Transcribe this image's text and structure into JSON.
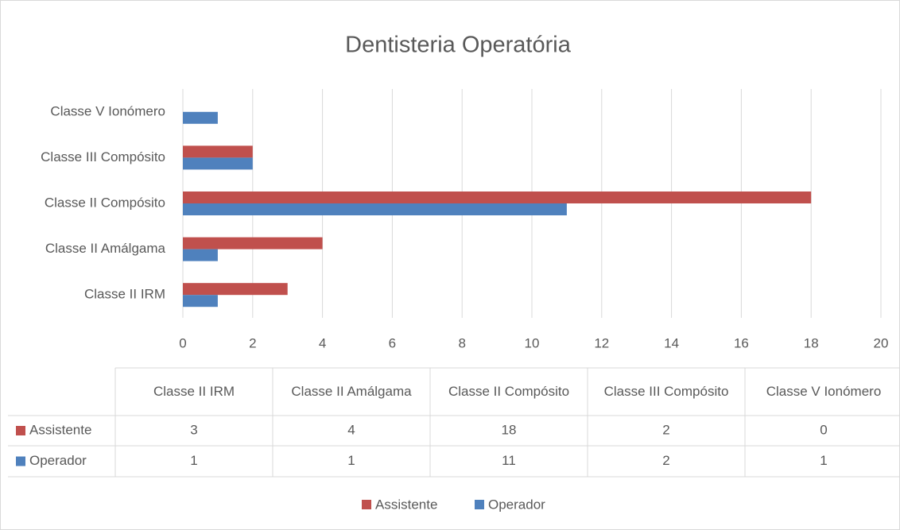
{
  "chart_data": {
    "type": "hbar",
    "title": "Dentisteria Operatória",
    "categories": [
      "Classe II IRM",
      "Classe II Amálgama",
      "Classe II Compósito",
      "Classe III Compósito",
      "Classe V Ionómero"
    ],
    "series": [
      {
        "name": "Assistente",
        "color": "#c0504d",
        "values": [
          3,
          4,
          18,
          2,
          0
        ]
      },
      {
        "name": "Operador",
        "color": "#4f81bd",
        "values": [
          1,
          1,
          11,
          2,
          1
        ]
      }
    ],
    "xlim": [
      0,
      20
    ],
    "xticks": [
      0,
      2,
      4,
      6,
      8,
      10,
      12,
      14,
      16,
      18,
      20
    ],
    "grid": true,
    "data_table": true,
    "legend": "bottom"
  }
}
